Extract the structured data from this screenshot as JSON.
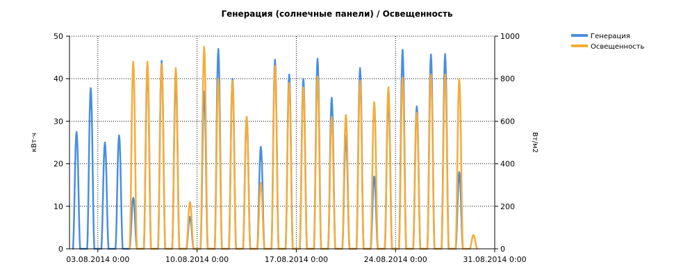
{
  "chart_data": {
    "type": "line",
    "title": "Генерация (солнечные панели) / Освещенность",
    "xlabel": "",
    "ylabel": "кВт·ч",
    "y2label": "Вт/м2",
    "x_range": [
      "2014-08-01 00:00",
      "2014-08-31 00:00"
    ],
    "x_ticks": [
      "03.08.2014 0:00",
      "10.08.2014 0:00",
      "17.08.2014 0:00",
      "24.08.2014 0:00",
      "31.08.2014 0:00"
    ],
    "x_tick_dates": [
      "2014-08-03",
      "2014-08-10",
      "2014-08-17",
      "2014-08-24",
      "2014-08-31"
    ],
    "ylim": [
      0,
      50
    ],
    "y_ticks": [
      0,
      10,
      20,
      30,
      40,
      50
    ],
    "y2lim": [
      0,
      1000
    ],
    "y2_ticks": [
      0,
      200,
      400,
      600,
      800,
      1000
    ],
    "grid": true,
    "legend_position": "top-right",
    "series": [
      {
        "name": "Генерация",
        "axis": "left",
        "color": "#4a8ee0",
        "daily_peak_dates": [
          "2014-08-01",
          "2014-08-02",
          "2014-08-03",
          "2014-08-04",
          "2014-08-05",
          "2014-08-06",
          "2014-08-07",
          "2014-08-08",
          "2014-08-09",
          "2014-08-10",
          "2014-08-11",
          "2014-08-12",
          "2014-08-13",
          "2014-08-14",
          "2014-08-15",
          "2014-08-16",
          "2014-08-17",
          "2014-08-18",
          "2014-08-19",
          "2014-08-20",
          "2014-08-21",
          "2014-08-22",
          "2014-08-23",
          "2014-08-24",
          "2014-08-25",
          "2014-08-26",
          "2014-08-27",
          "2014-08-28"
        ],
        "daily_peaks": [
          27.5,
          37.8,
          25.0,
          26.7,
          12.0,
          42.5,
          44.2,
          40.0,
          7.5,
          37.0,
          47.0,
          40.0,
          31.0,
          24.0,
          44.5,
          41.0,
          40.0,
          44.7,
          35.5,
          26.5,
          42.5,
          17.0,
          35.7,
          46.8,
          33.5,
          45.7,
          45.8,
          18.0
        ]
      },
      {
        "name": "Освещенность",
        "axis": "right",
        "color": "#f5ac3a",
        "daily_peak_dates": [
          "2014-08-05",
          "2014-08-06",
          "2014-08-07",
          "2014-08-08",
          "2014-08-09",
          "2014-08-10",
          "2014-08-11",
          "2014-08-12",
          "2014-08-13",
          "2014-08-14",
          "2014-08-15",
          "2014-08-16",
          "2014-08-17",
          "2014-08-18",
          "2014-08-19",
          "2014-08-20",
          "2014-08-21",
          "2014-08-22",
          "2014-08-23",
          "2014-08-24",
          "2014-08-25",
          "2014-08-26",
          "2014-08-27",
          "2014-08-28",
          "2014-08-29"
        ],
        "daily_peaks": [
          880,
          880,
          870,
          850,
          220,
          950,
          800,
          790,
          620,
          310,
          860,
          780,
          760,
          810,
          620,
          630,
          790,
          690,
          760,
          805,
          640,
          820,
          820,
          800,
          65
        ]
      }
    ]
  }
}
